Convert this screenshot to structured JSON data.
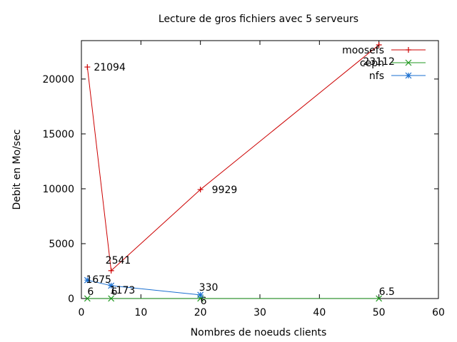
{
  "chart_data": {
    "type": "line",
    "title": "Lecture de gros fichiers avec 5 serveurs",
    "xlabel": "Nombres de noeuds clients",
    "ylabel": "Debit en Mo/sec",
    "xlim": [
      0,
      60
    ],
    "ylim": [
      0,
      23500
    ],
    "xticks": [
      0,
      10,
      20,
      30,
      40,
      50,
      60
    ],
    "yticks": [
      0,
      5000,
      10000,
      15000,
      20000
    ],
    "grid": false,
    "legend_position": "top-right",
    "series": [
      {
        "name": "moosefs",
        "color": "#cc0000",
        "marker": "plus",
        "x": [
          1,
          5,
          20,
          50
        ],
        "y": [
          21094,
          2541,
          9929,
          23112
        ],
        "labels": [
          "21094",
          "2541",
          "9929",
          "23112"
        ]
      },
      {
        "name": "ceph",
        "color": "#229922",
        "marker": "cross",
        "x": [
          1,
          5,
          20,
          50
        ],
        "y": [
          6,
          6,
          6,
          6.5
        ],
        "labels": [
          "6",
          "6",
          "6",
          "6.5"
        ]
      },
      {
        "name": "nfs",
        "color": "#1a6fd0",
        "marker": "star",
        "x": [
          1,
          5,
          20
        ],
        "y": [
          1675,
          1173,
          330
        ],
        "labels": [
          "1675",
          "1173",
          "330"
        ]
      }
    ]
  }
}
